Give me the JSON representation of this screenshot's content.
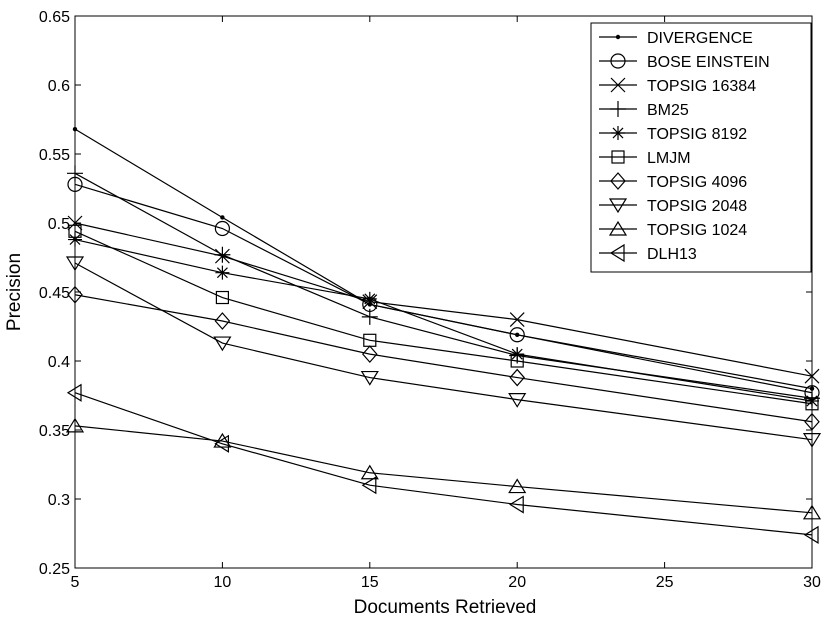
{
  "chart_data": {
    "type": "line",
    "title": "",
    "xlabel": "Documents Retrieved",
    "ylabel": "Precision",
    "xlim": [
      5,
      30
    ],
    "ylim": [
      0.25,
      0.65
    ],
    "xticks": [
      5,
      10,
      15,
      20,
      25,
      30
    ],
    "xtick_labels": [
      "5",
      "10",
      "15",
      "20",
      "25",
      "30"
    ],
    "yticks": [
      0.25,
      0.3,
      0.35,
      0.4,
      0.45,
      0.5,
      0.55,
      0.6,
      0.65
    ],
    "ytick_labels": [
      "0.25",
      "0.3",
      "0.35",
      "0.4",
      "0.45",
      "0.5",
      "0.55",
      "0.6",
      "0.65"
    ],
    "grid": false,
    "legend_position": "top-right",
    "x": [
      5,
      10,
      15,
      20,
      30
    ],
    "series": [
      {
        "name": "DIVERGENCE",
        "marker": "dot",
        "values": [
          0.568,
          0.504,
          0.441,
          0.419,
          0.38
        ]
      },
      {
        "name": "BOSE EINSTEIN",
        "marker": "circle",
        "values": [
          0.528,
          0.496,
          0.441,
          0.419,
          0.377
        ]
      },
      {
        "name": "TOPSIG 16384",
        "marker": "x",
        "values": [
          0.5,
          0.476,
          0.443,
          0.43,
          0.389
        ]
      },
      {
        "name": "BM25",
        "marker": "plus",
        "values": [
          0.536,
          0.477,
          0.432,
          0.404,
          0.373
        ]
      },
      {
        "name": "TOPSIG 8192",
        "marker": "star",
        "values": [
          0.488,
          0.464,
          0.445,
          0.405,
          0.371
        ]
      },
      {
        "name": "LMJM",
        "marker": "square",
        "values": [
          0.494,
          0.446,
          0.415,
          0.4,
          0.369
        ]
      },
      {
        "name": "TOPSIG 4096",
        "marker": "diamond",
        "values": [
          0.448,
          0.429,
          0.405,
          0.388,
          0.356
        ]
      },
      {
        "name": "TOPSIG 2048",
        "marker": "triangle-down",
        "values": [
          0.471,
          0.413,
          0.388,
          0.372,
          0.343
        ]
      },
      {
        "name": "TOPSIG 1024",
        "marker": "triangle-up",
        "values": [
          0.353,
          0.342,
          0.319,
          0.309,
          0.29
        ]
      },
      {
        "name": "DLH13",
        "marker": "triangle-left",
        "values": [
          0.377,
          0.34,
          0.31,
          0.296,
          0.274
        ]
      }
    ]
  }
}
